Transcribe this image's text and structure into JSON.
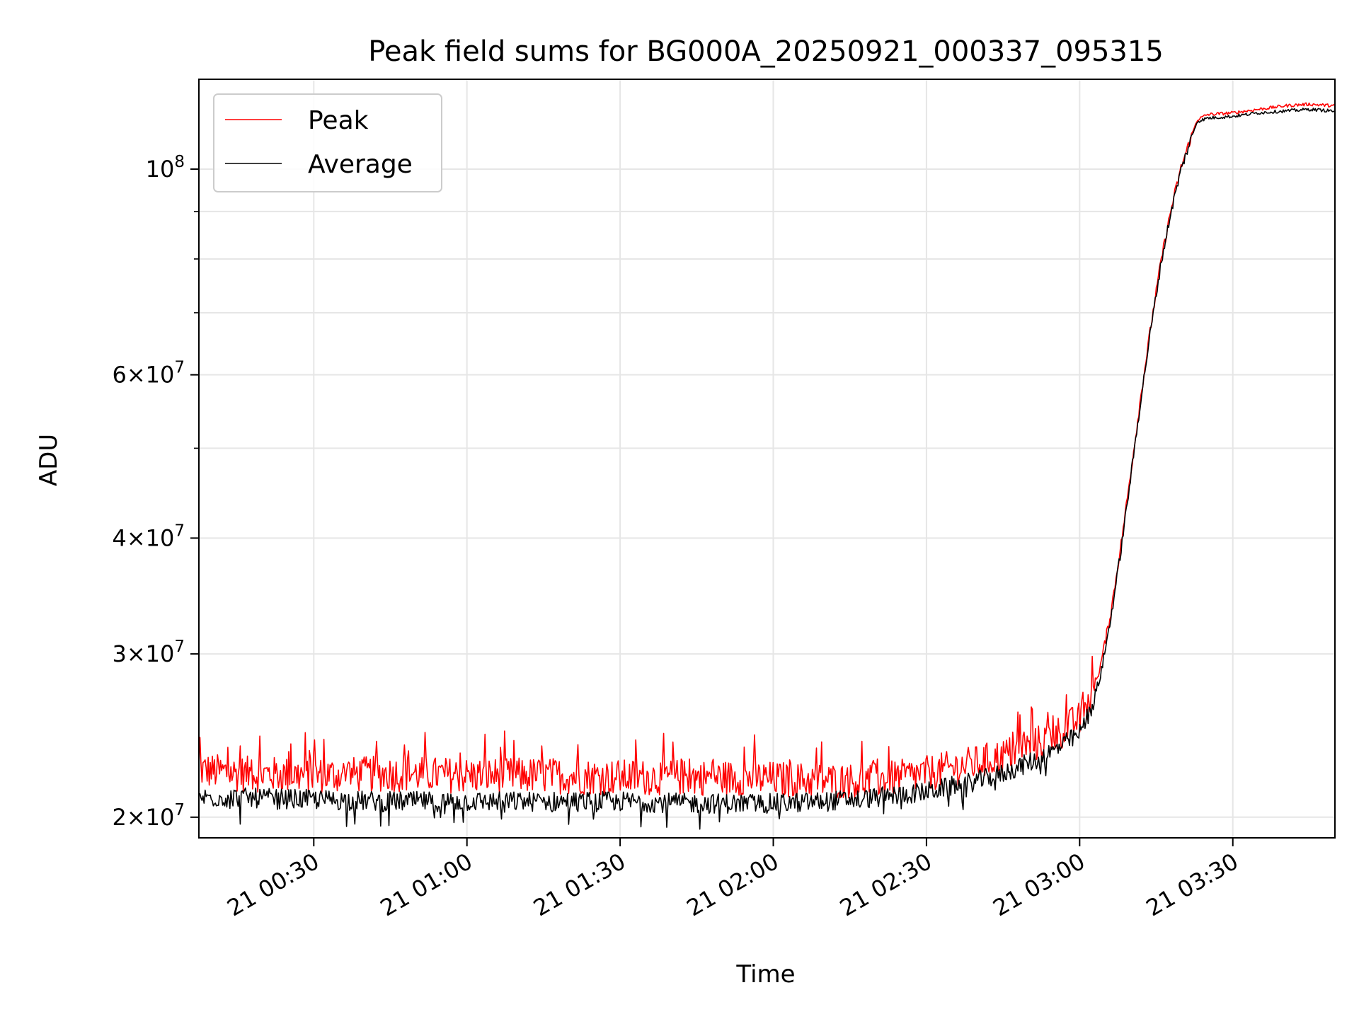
{
  "chart_data": {
    "type": "line",
    "title": "Peak field sums for BG000A_20250921_000337_095315",
    "xlabel": "Time",
    "ylabel": "ADU",
    "yscale": "log",
    "grid": true,
    "legend_position": "upper-left",
    "xlim": [
      "2025-09-21 00:07:30",
      "2025-09-21 03:50:00"
    ],
    "ylim": [
      19000000,
      125000000
    ],
    "x_ticks": [
      {
        "value": "2025-09-21 00:30",
        "label": "21 00:30"
      },
      {
        "value": "2025-09-21 01:00",
        "label": "21 01:00"
      },
      {
        "value": "2025-09-21 01:30",
        "label": "21 01:30"
      },
      {
        "value": "2025-09-21 02:00",
        "label": "21 02:00"
      },
      {
        "value": "2025-09-21 02:30",
        "label": "21 02:30"
      },
      {
        "value": "2025-09-21 03:00",
        "label": "21 03:00"
      },
      {
        "value": "2025-09-21 03:30",
        "label": "21 03:30"
      }
    ],
    "y_ticks": [
      {
        "value": 20000000,
        "coef": "2",
        "exp": "7"
      },
      {
        "value": 30000000,
        "coef": "3",
        "exp": "7"
      },
      {
        "value": 40000000,
        "coef": "4",
        "exp": "7"
      },
      {
        "value": 60000000,
        "coef": "6",
        "exp": "7"
      },
      {
        "value": 100000000,
        "coef": "",
        "exp": "8"
      }
    ],
    "y_minor_ticks": [
      50000000,
      70000000,
      80000000,
      90000000
    ],
    "series": [
      {
        "name": "Peak",
        "color": "#ff0000",
        "x": [
          "2025-09-21 00:07:30",
          "2025-09-21 00:15",
          "2025-09-21 00:30",
          "2025-09-21 00:45",
          "2025-09-21 01:00",
          "2025-09-21 01:15",
          "2025-09-21 01:30",
          "2025-09-21 01:45",
          "2025-09-21 02:00",
          "2025-09-21 02:10",
          "2025-09-21 02:20",
          "2025-09-21 02:30",
          "2025-09-21 02:40",
          "2025-09-21 02:45",
          "2025-09-21 02:50",
          "2025-09-21 02:55",
          "2025-09-21 03:00",
          "2025-09-21 03:02",
          "2025-09-21 03:04",
          "2025-09-21 03:06",
          "2025-09-21 03:08",
          "2025-09-21 03:10",
          "2025-09-21 03:12",
          "2025-09-21 03:14",
          "2025-09-21 03:16",
          "2025-09-21 03:18",
          "2025-09-21 03:20",
          "2025-09-21 03:22",
          "2025-09-21 03:23",
          "2025-09-21 03:25",
          "2025-09-21 03:30",
          "2025-09-21 03:35",
          "2025-09-21 03:40",
          "2025-09-21 03:45",
          "2025-09-21 03:50"
        ],
        "y": [
          22500000,
          22300000,
          22200000,
          22300000,
          22200000,
          22200000,
          22100000,
          22100000,
          22000000,
          21900000,
          21900000,
          22300000,
          22900000,
          23300000,
          23800000,
          24500000,
          25500000,
          26800000,
          29000000,
          33000000,
          39000000,
          47000000,
          57000000,
          68000000,
          80000000,
          91000000,
          101000000,
          109000000,
          113000000,
          114500000,
          115000000,
          116000000,
          117000000,
          117500000,
          117000000
        ]
      },
      {
        "name": "Average",
        "color": "#000000",
        "x": [
          "2025-09-21 00:07:30",
          "2025-09-21 00:15",
          "2025-09-21 00:30",
          "2025-09-21 00:45",
          "2025-09-21 01:00",
          "2025-09-21 01:15",
          "2025-09-21 01:30",
          "2025-09-21 01:45",
          "2025-09-21 02:00",
          "2025-09-21 02:10",
          "2025-09-21 02:20",
          "2025-09-21 02:30",
          "2025-09-21 02:40",
          "2025-09-21 02:45",
          "2025-09-21 02:50",
          "2025-09-21 02:55",
          "2025-09-21 03:00",
          "2025-09-21 03:02",
          "2025-09-21 03:04",
          "2025-09-21 03:06",
          "2025-09-21 03:08",
          "2025-09-21 03:10",
          "2025-09-21 03:12",
          "2025-09-21 03:14",
          "2025-09-21 03:16",
          "2025-09-21 03:18",
          "2025-09-21 03:20",
          "2025-09-21 03:22",
          "2025-09-21 03:23",
          "2025-09-21 03:25",
          "2025-09-21 03:30",
          "2025-09-21 03:35",
          "2025-09-21 03:40",
          "2025-09-21 03:45",
          "2025-09-21 03:50"
        ],
        "y": [
          21000000,
          21000000,
          20900000,
          20800000,
          20800000,
          20800000,
          20800000,
          20700000,
          20700000,
          20800000,
          21000000,
          21300000,
          21900000,
          22300000,
          22900000,
          23600000,
          24600000,
          26000000,
          28300000,
          32500000,
          38500000,
          46500000,
          56500000,
          67500000,
          79500000,
          90500000,
          100500000,
          108500000,
          112500000,
          113500000,
          114000000,
          115000000,
          115500000,
          116000000,
          115500000
        ]
      }
    ]
  }
}
